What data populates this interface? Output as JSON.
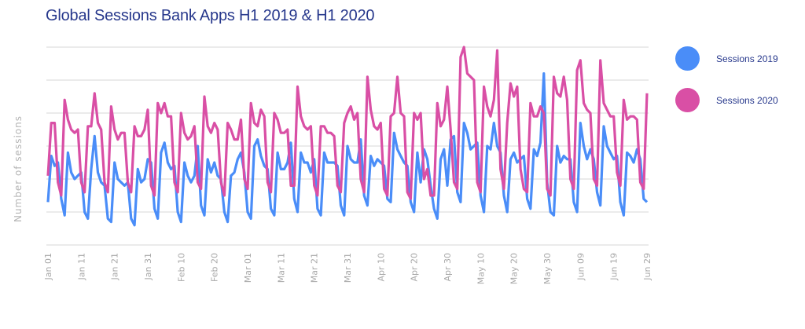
{
  "chart_data": {
    "type": "line",
    "title": "Global Sessions Bank Apps H1 2019 & H1 2020",
    "xlabel": "",
    "ylabel": "Number of sessions",
    "ylim": [
      0,
      6
    ],
    "grid": true,
    "legend_position": "right",
    "x_start": "Jan 01",
    "x_end": "Jun 29",
    "num_days": 181,
    "x_ticks": [
      "Jan 01",
      "Jan 11",
      "Jan 21",
      "Jan 31",
      "Feb 10",
      "Feb 20",
      "Mar 01",
      "Mar 11",
      "Mar 21",
      "Mar 31",
      "Apr 10",
      "Apr 20",
      "Apr 30",
      "May 10",
      "May 20",
      "May 30",
      "Jun 09",
      "Jun 19",
      "Jun 29"
    ],
    "series": [
      {
        "name": "Sessions 2019",
        "color": "#4a8df8",
        "values": [
          1.3,
          2.7,
          2.4,
          2.5,
          1.4,
          0.9,
          2.8,
          2.2,
          2.0,
          2.1,
          2.2,
          1.0,
          0.8,
          2.3,
          3.3,
          2.2,
          1.9,
          1.8,
          0.8,
          0.7,
          2.5,
          2.0,
          1.9,
          1.8,
          1.9,
          0.8,
          0.6,
          2.3,
          1.9,
          2.0,
          2.6,
          2.5,
          1.1,
          0.8,
          2.8,
          3.1,
          2.5,
          2.3,
          2.4,
          1.0,
          0.7,
          2.5,
          2.1,
          1.9,
          2.1,
          3.0,
          1.2,
          0.9,
          2.6,
          2.2,
          2.5,
          2.1,
          2.0,
          1.0,
          0.7,
          2.1,
          2.2,
          2.6,
          2.8,
          2.2,
          1.0,
          0.8,
          3.0,
          3.2,
          2.7,
          2.4,
          2.3,
          1.1,
          0.9,
          2.8,
          2.3,
          2.3,
          2.5,
          3.1,
          1.4,
          1.0,
          2.8,
          2.5,
          2.5,
          2.2,
          2.6,
          1.1,
          0.9,
          2.8,
          2.5,
          2.5,
          2.5,
          2.4,
          1.2,
          0.9,
          3.0,
          2.6,
          2.5,
          2.5,
          3.2,
          1.5,
          1.2,
          2.7,
          2.4,
          2.6,
          2.5,
          2.4,
          1.4,
          1.3,
          3.4,
          2.9,
          2.7,
          2.5,
          2.4,
          1.3,
          1.0,
          2.8,
          1.9,
          2.9,
          2.6,
          1.8,
          1.1,
          0.8,
          2.6,
          2.9,
          1.8,
          3.2,
          3.3,
          1.6,
          1.3,
          3.7,
          3.4,
          2.9,
          3.0,
          3.1,
          1.5,
          1.0,
          3.0,
          2.9,
          3.7,
          3.0,
          2.8,
          1.5,
          1.0,
          2.6,
          2.8,
          2.5,
          2.6,
          2.7,
          1.4,
          1.1,
          2.9,
          2.7,
          3.1,
          5.2,
          1.9,
          1.0,
          0.9,
          3.0,
          2.5,
          2.7,
          2.6,
          2.6,
          1.3,
          1.0,
          3.7,
          3.0,
          2.6,
          2.9,
          2.6,
          1.6,
          1.2,
          3.6,
          3.0,
          2.8,
          2.6,
          2.7,
          1.3,
          0.9,
          2.8,
          2.7,
          2.5,
          2.9,
          2.6,
          1.4,
          1.3
        ]
      },
      {
        "name": "Sessions 2020",
        "color": "#d94fa5",
        "values": [
          2.1,
          3.7,
          3.7,
          1.9,
          1.5,
          4.4,
          3.8,
          3.5,
          3.4,
          3.5,
          1.9,
          1.6,
          3.6,
          3.6,
          4.6,
          3.7,
          3.5,
          1.9,
          1.6,
          4.2,
          3.5,
          3.2,
          3.4,
          3.4,
          1.9,
          1.6,
          3.6,
          3.3,
          3.3,
          3.5,
          4.1,
          1.8,
          1.5,
          4.3,
          4.0,
          4.3,
          3.9,
          3.9,
          1.9,
          1.6,
          4.0,
          3.4,
          3.2,
          3.3,
          3.6,
          1.9,
          1.7,
          4.5,
          3.6,
          3.4,
          3.7,
          3.5,
          1.9,
          1.5,
          3.7,
          3.5,
          3.2,
          3.2,
          3.8,
          2.0,
          1.7,
          4.3,
          3.7,
          3.6,
          4.1,
          3.9,
          1.9,
          1.6,
          4.0,
          3.8,
          3.4,
          3.4,
          3.5,
          1.8,
          1.8,
          4.8,
          3.9,
          3.6,
          3.5,
          3.6,
          1.8,
          1.5,
          3.6,
          3.6,
          3.4,
          3.4,
          3.3,
          1.8,
          1.6,
          3.7,
          4.0,
          4.2,
          3.8,
          4.0,
          2.0,
          1.6,
          5.1,
          4.1,
          3.6,
          3.5,
          3.7,
          1.7,
          1.5,
          3.9,
          4.0,
          5.1,
          4.0,
          3.9,
          1.6,
          1.4,
          4.0,
          3.8,
          4.0,
          2.0,
          2.3,
          1.5,
          1.5,
          4.3,
          3.6,
          3.8,
          4.8,
          3.5,
          1.9,
          1.7,
          5.7,
          6.0,
          5.2,
          5.1,
          5.0,
          1.9,
          1.6,
          4.8,
          4.2,
          3.9,
          4.4,
          5.9,
          2.3,
          1.7,
          3.7,
          4.9,
          4.5,
          4.8,
          2.3,
          1.7,
          1.6,
          4.3,
          3.9,
          3.9,
          4.2,
          4.0,
          1.7,
          1.5,
          5.1,
          4.6,
          4.5,
          5.1,
          4.4,
          2.0,
          1.7,
          5.3,
          5.6,
          4.3,
          4.1,
          4.0,
          2.0,
          1.8,
          5.6,
          4.3,
          4.1,
          3.9,
          3.9,
          2.2,
          1.8,
          4.4,
          3.8,
          3.9,
          3.9,
          3.8,
          1.9,
          1.7,
          4.6
        ]
      }
    ]
  }
}
